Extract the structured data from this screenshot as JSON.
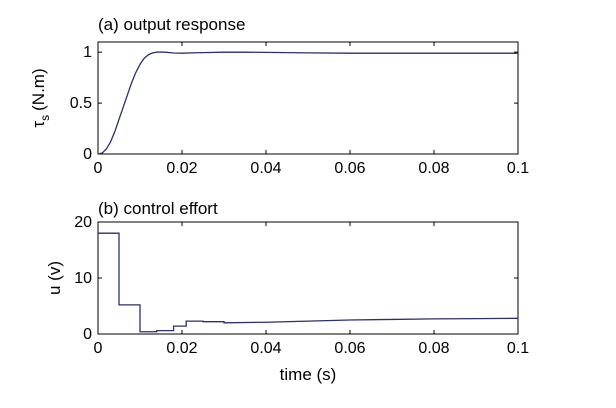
{
  "chart_data": [
    {
      "type": "line",
      "title": "(a) output response",
      "xlabel": "",
      "ylabel": "τ",
      "ylabel_subscript": "s",
      "ylabel_unit": "(N.m)",
      "xlim": [
        0,
        0.1
      ],
      "ylim": [
        0,
        1.1
      ],
      "xticks": [
        0,
        0.02,
        0.04,
        0.06,
        0.08,
        0.1
      ],
      "xtick_labels": [
        "0",
        "0.02",
        "0.04",
        "0.06",
        "0.08",
        "0.1"
      ],
      "yticks": [
        0,
        0.5,
        1
      ],
      "ytick_labels": [
        "0",
        "0.5",
        "1"
      ],
      "grid": false,
      "line_color": "#2b2f6e",
      "series": [
        {
          "x": [
            0,
            0.001,
            0.002,
            0.003,
            0.004,
            0.005,
            0.006,
            0.007,
            0.008,
            0.009,
            0.01,
            0.011,
            0.012,
            0.013,
            0.014,
            0.015,
            0.016,
            0.018,
            0.02,
            0.022,
            0.025,
            0.03,
            0.035,
            0.04,
            0.05,
            0.06,
            0.07,
            0.08,
            0.09,
            0.1
          ],
          "y": [
            0,
            0.01,
            0.05,
            0.12,
            0.22,
            0.34,
            0.46,
            0.58,
            0.7,
            0.8,
            0.88,
            0.94,
            0.975,
            0.993,
            1.0,
            1.002,
            1.0,
            0.992,
            0.99,
            0.993,
            0.996,
            1.0,
            1.0,
            0.998,
            0.993,
            0.99,
            0.99,
            0.99,
            0.99,
            0.99
          ]
        }
      ]
    },
    {
      "type": "line",
      "title": "(b) control effort",
      "xlabel": "time (s)",
      "ylabel": "u (v)",
      "xlim": [
        0,
        0.1
      ],
      "ylim": [
        0,
        20
      ],
      "xticks": [
        0,
        0.02,
        0.04,
        0.06,
        0.08,
        0.1
      ],
      "xtick_labels": [
        "0",
        "0.02",
        "0.04",
        "0.06",
        "0.08",
        "0.1"
      ],
      "yticks": [
        0,
        10,
        20
      ],
      "ytick_labels": [
        "0",
        "10",
        "20"
      ],
      "grid": false,
      "line_color": "#2b2f6e",
      "series": [
        {
          "step": true,
          "x": [
            0,
            0.005,
            0.005,
            0.01,
            0.01,
            0.014,
            0.014,
            0.018,
            0.018,
            0.021,
            0.021,
            0.025,
            0.025,
            0.03,
            0.03,
            0.04,
            0.05,
            0.06,
            0.07,
            0.08,
            0.09,
            0.1
          ],
          "y": [
            18,
            18,
            5.2,
            5.2,
            0.4,
            0.4,
            0.6,
            0.6,
            1.4,
            1.4,
            2.3,
            2.3,
            2.2,
            2.2,
            2.0,
            2.1,
            2.3,
            2.5,
            2.6,
            2.7,
            2.75,
            2.8
          ]
        }
      ]
    }
  ]
}
